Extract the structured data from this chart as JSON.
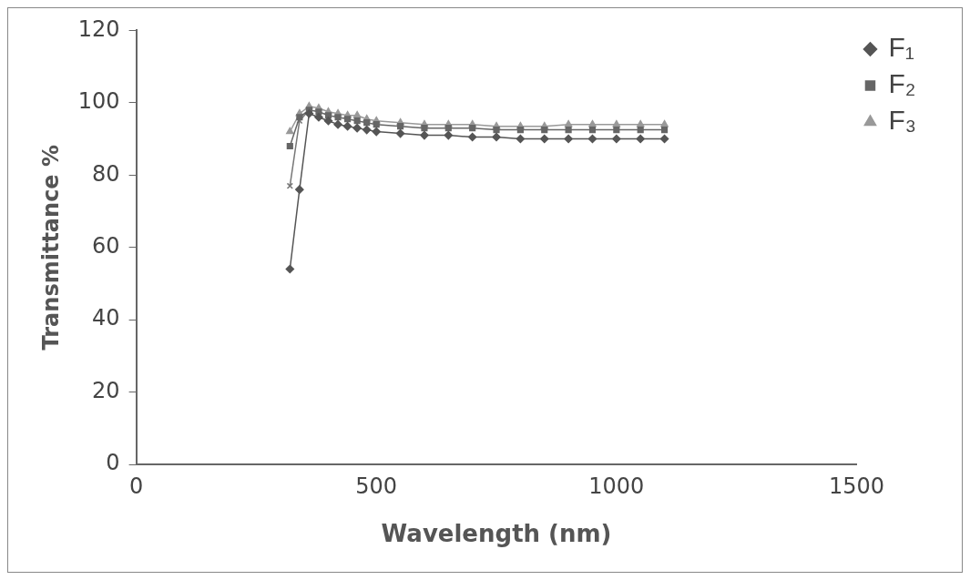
{
  "chart_data": {
    "type": "line",
    "xlabel": "Wavelength (nm)",
    "ylabel": "Transmittance %",
    "x": [
      320,
      340,
      360,
      380,
      400,
      420,
      440,
      460,
      480,
      500,
      550,
      600,
      650,
      700,
      750,
      800,
      850,
      900,
      950,
      1000,
      1050,
      1100
    ],
    "xlim": [
      0,
      1500
    ],
    "xticks": [
      0,
      500,
      1000,
      1500
    ],
    "ylim": [
      0,
      120
    ],
    "yticks": [
      0,
      20,
      40,
      60,
      80,
      100,
      120
    ],
    "grid": false,
    "legend": "top right",
    "line_style": "solid",
    "series": [
      {
        "name": "F₁",
        "color": "#555555",
        "marker": "diamond",
        "values": [
          54,
          76,
          97,
          96,
          95,
          94,
          93.5,
          93,
          92.5,
          92,
          91.5,
          91,
          91,
          90.5,
          90.5,
          90,
          90,
          90,
          90,
          90,
          90,
          90
        ]
      },
      {
        "name": "F₂",
        "color": "#666666",
        "marker": "square",
        "values": [
          88,
          96,
          98,
          97.5,
          96.5,
          96,
          95.5,
          95,
          94.5,
          94,
          93.5,
          93,
          93,
          93,
          92.5,
          92.5,
          92.5,
          92.5,
          92.5,
          92.5,
          92.5,
          92.5
        ]
      },
      {
        "name": "F₃",
        "color": "#999999",
        "marker": "triangle",
        "values": [
          92,
          97,
          99,
          98.5,
          97.5,
          97,
          96.5,
          96.5,
          95.5,
          95,
          94.5,
          94,
          94,
          94,
          93.5,
          93.5,
          93.5,
          94,
          94,
          94,
          94,
          94
        ]
      },
      {
        "color": "#777777",
        "marker": "cross",
        "values": [
          77,
          95,
          98,
          null,
          null,
          null,
          null,
          null,
          null,
          null,
          null,
          null,
          null,
          null,
          null,
          null,
          null,
          null,
          null,
          null,
          null,
          null
        ]
      }
    ]
  }
}
